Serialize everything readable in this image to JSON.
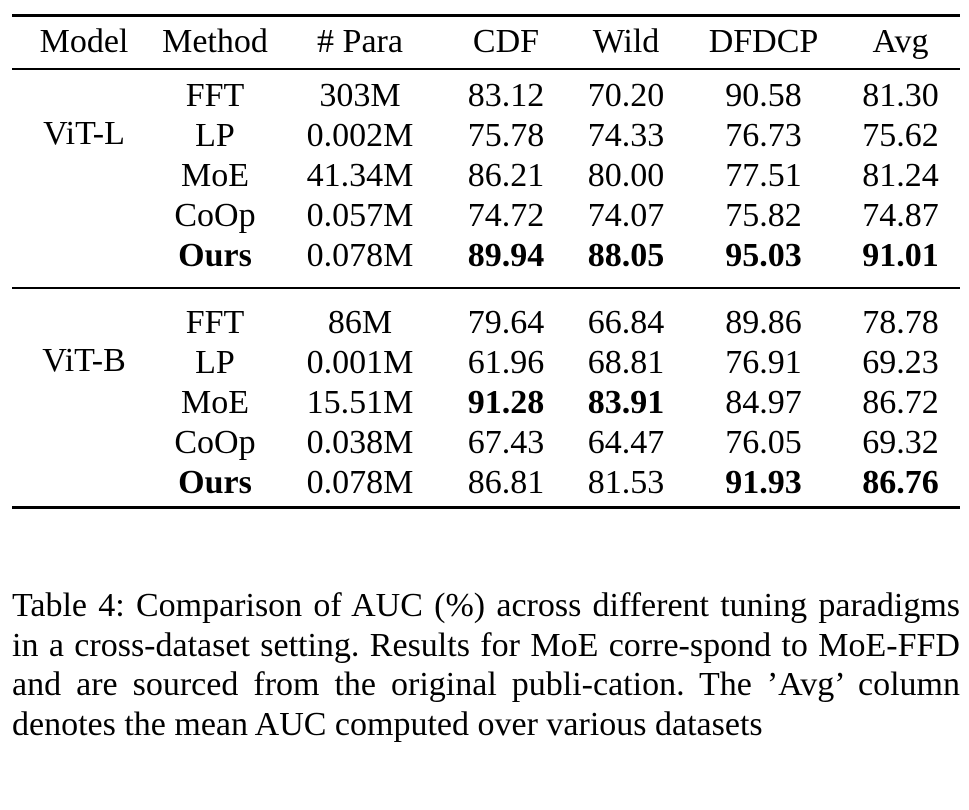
{
  "table": {
    "headers": [
      "Model",
      "Method",
      "# Para",
      "CDF",
      "Wild",
      "DFDCP",
      "Avg"
    ],
    "groups": [
      {
        "model": "ViT-L",
        "rows": [
          {
            "method": "FFT",
            "para": "303M",
            "cdf": "83.12",
            "wild": "70.20",
            "dfdcp": "90.58",
            "avg": "81.30",
            "bold": []
          },
          {
            "method": "LP",
            "para": "0.002M",
            "cdf": "75.78",
            "wild": "74.33",
            "dfdcp": "76.73",
            "avg": "75.62",
            "bold": []
          },
          {
            "method": "MoE",
            "para": "41.34M",
            "cdf": "86.21",
            "wild": "80.00",
            "dfdcp": "77.51",
            "avg": "81.24",
            "bold": []
          },
          {
            "method": "CoOp",
            "para": "0.057M",
            "cdf": "74.72",
            "wild": "74.07",
            "dfdcp": "75.82",
            "avg": "74.87",
            "bold": []
          },
          {
            "method": "Ours",
            "para": "0.078M",
            "cdf": "89.94",
            "wild": "88.05",
            "dfdcp": "95.03",
            "avg": "91.01",
            "bold": [
              "method",
              "cdf",
              "wild",
              "dfdcp",
              "avg"
            ]
          }
        ]
      },
      {
        "model": "ViT-B",
        "rows": [
          {
            "method": "FFT",
            "para": "86M",
            "cdf": "79.64",
            "wild": "66.84",
            "dfdcp": "89.86",
            "avg": "78.78",
            "bold": []
          },
          {
            "method": "LP",
            "para": "0.001M",
            "cdf": "61.96",
            "wild": "68.81",
            "dfdcp": "76.91",
            "avg": "69.23",
            "bold": []
          },
          {
            "method": "MoE",
            "para": "15.51M",
            "cdf": "91.28",
            "wild": "83.91",
            "dfdcp": "84.97",
            "avg": "86.72",
            "bold": [
              "cdf",
              "wild"
            ]
          },
          {
            "method": "CoOp",
            "para": "0.038M",
            "cdf": "67.43",
            "wild": "64.47",
            "dfdcp": "76.05",
            "avg": "69.32",
            "bold": []
          },
          {
            "method": "Ours",
            "para": "0.078M",
            "cdf": "86.81",
            "wild": "81.53",
            "dfdcp": "91.93",
            "avg": "86.76",
            "bold": [
              "method",
              "dfdcp",
              "avg"
            ]
          }
        ]
      }
    ]
  },
  "caption": "Table 4: Comparison of AUC (%) across different tuning paradigms in a cross-dataset setting. Results for MoE corre-spond to MoE-FFD and are sourced from the original publi-cation. The ’Avg’ column denotes the mean AUC computed over various datasets"
}
